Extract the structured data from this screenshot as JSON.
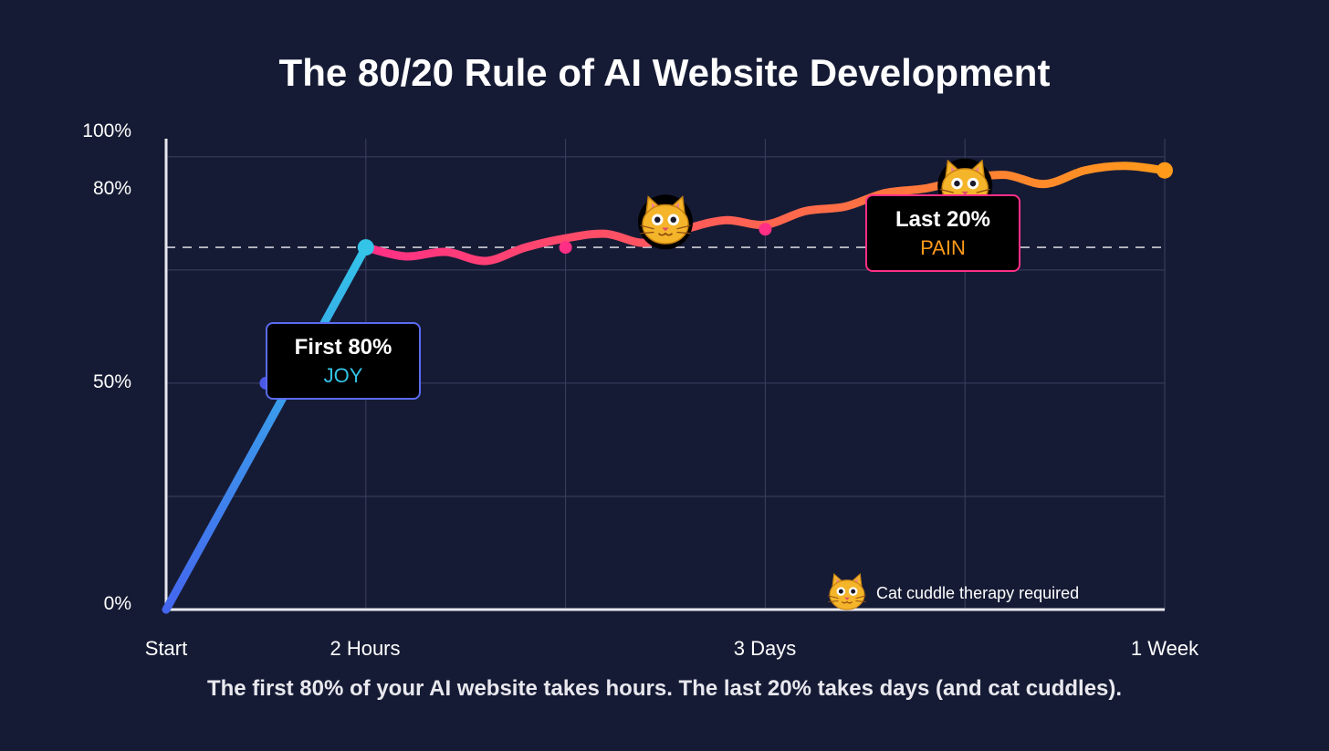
{
  "title": "The 80/20 Rule of AI Website Development",
  "subtitle": "The first 80% of your AI website takes hours. The last 20% takes days (and cat cuddles).",
  "colors": {
    "background": "#161b35",
    "joy_start": "#4466ee",
    "joy_end": "#33c4e8",
    "pain_start": "#ff2f86",
    "pain_end": "#ff9a1a",
    "grid": "#3a4060",
    "threshold": "#d0d0d8"
  },
  "callouts": {
    "first": {
      "heading": "First 80%",
      "label": "JOY",
      "border": "#5a6bf0",
      "label_color": "#33c4e8"
    },
    "last": {
      "heading": "Last 20%",
      "label": "PAIN",
      "border": "#ff2f86",
      "label_color": "#ff9a1a"
    }
  },
  "note": {
    "icon": "cat-face-icon",
    "text": "Cat cuddle therapy required"
  },
  "chart_data": {
    "type": "line",
    "title": "The 80/20 Rule of AI Website Development",
    "x_ticks": [
      "Start",
      "2 Hours",
      "3 Days",
      "1 Week"
    ],
    "y_ticks": [
      "0%",
      "50%",
      "80%",
      "100%"
    ],
    "threshold_y": 80,
    "grid": true,
    "series": [
      {
        "segment": "joy",
        "x": [
          0,
          1
        ],
        "y": [
          0,
          80
        ]
      },
      {
        "segment": "pain",
        "x": [
          1,
          1.2,
          1.4,
          1.6,
          1.8,
          2,
          2.2,
          2.4,
          2.6,
          2.8,
          3,
          3.2,
          3.4,
          3.6,
          3.8,
          4,
          4.2,
          4.4,
          4.6,
          4.8,
          5
        ],
        "y": [
          80,
          78,
          79,
          77,
          80,
          82,
          83,
          81,
          84,
          86,
          85,
          88,
          89,
          92,
          93,
          95,
          96,
          94,
          97,
          98,
          97
        ]
      }
    ],
    "markers": [
      {
        "x": 0.5,
        "y": 50,
        "color": "#4b58e6"
      },
      {
        "x": 1,
        "y": 80,
        "color": "#33c4e8"
      },
      {
        "x": 2,
        "y": 80,
        "color": "#ff2f86"
      },
      {
        "x": 3,
        "y": 84,
        "color": "#ff2f86"
      },
      {
        "x": 5,
        "y": 97,
        "color": "#ff9a1a"
      }
    ],
    "cat_icons": [
      {
        "x": 2.5,
        "y": 86
      },
      {
        "x": 4,
        "y": 94
      }
    ]
  }
}
